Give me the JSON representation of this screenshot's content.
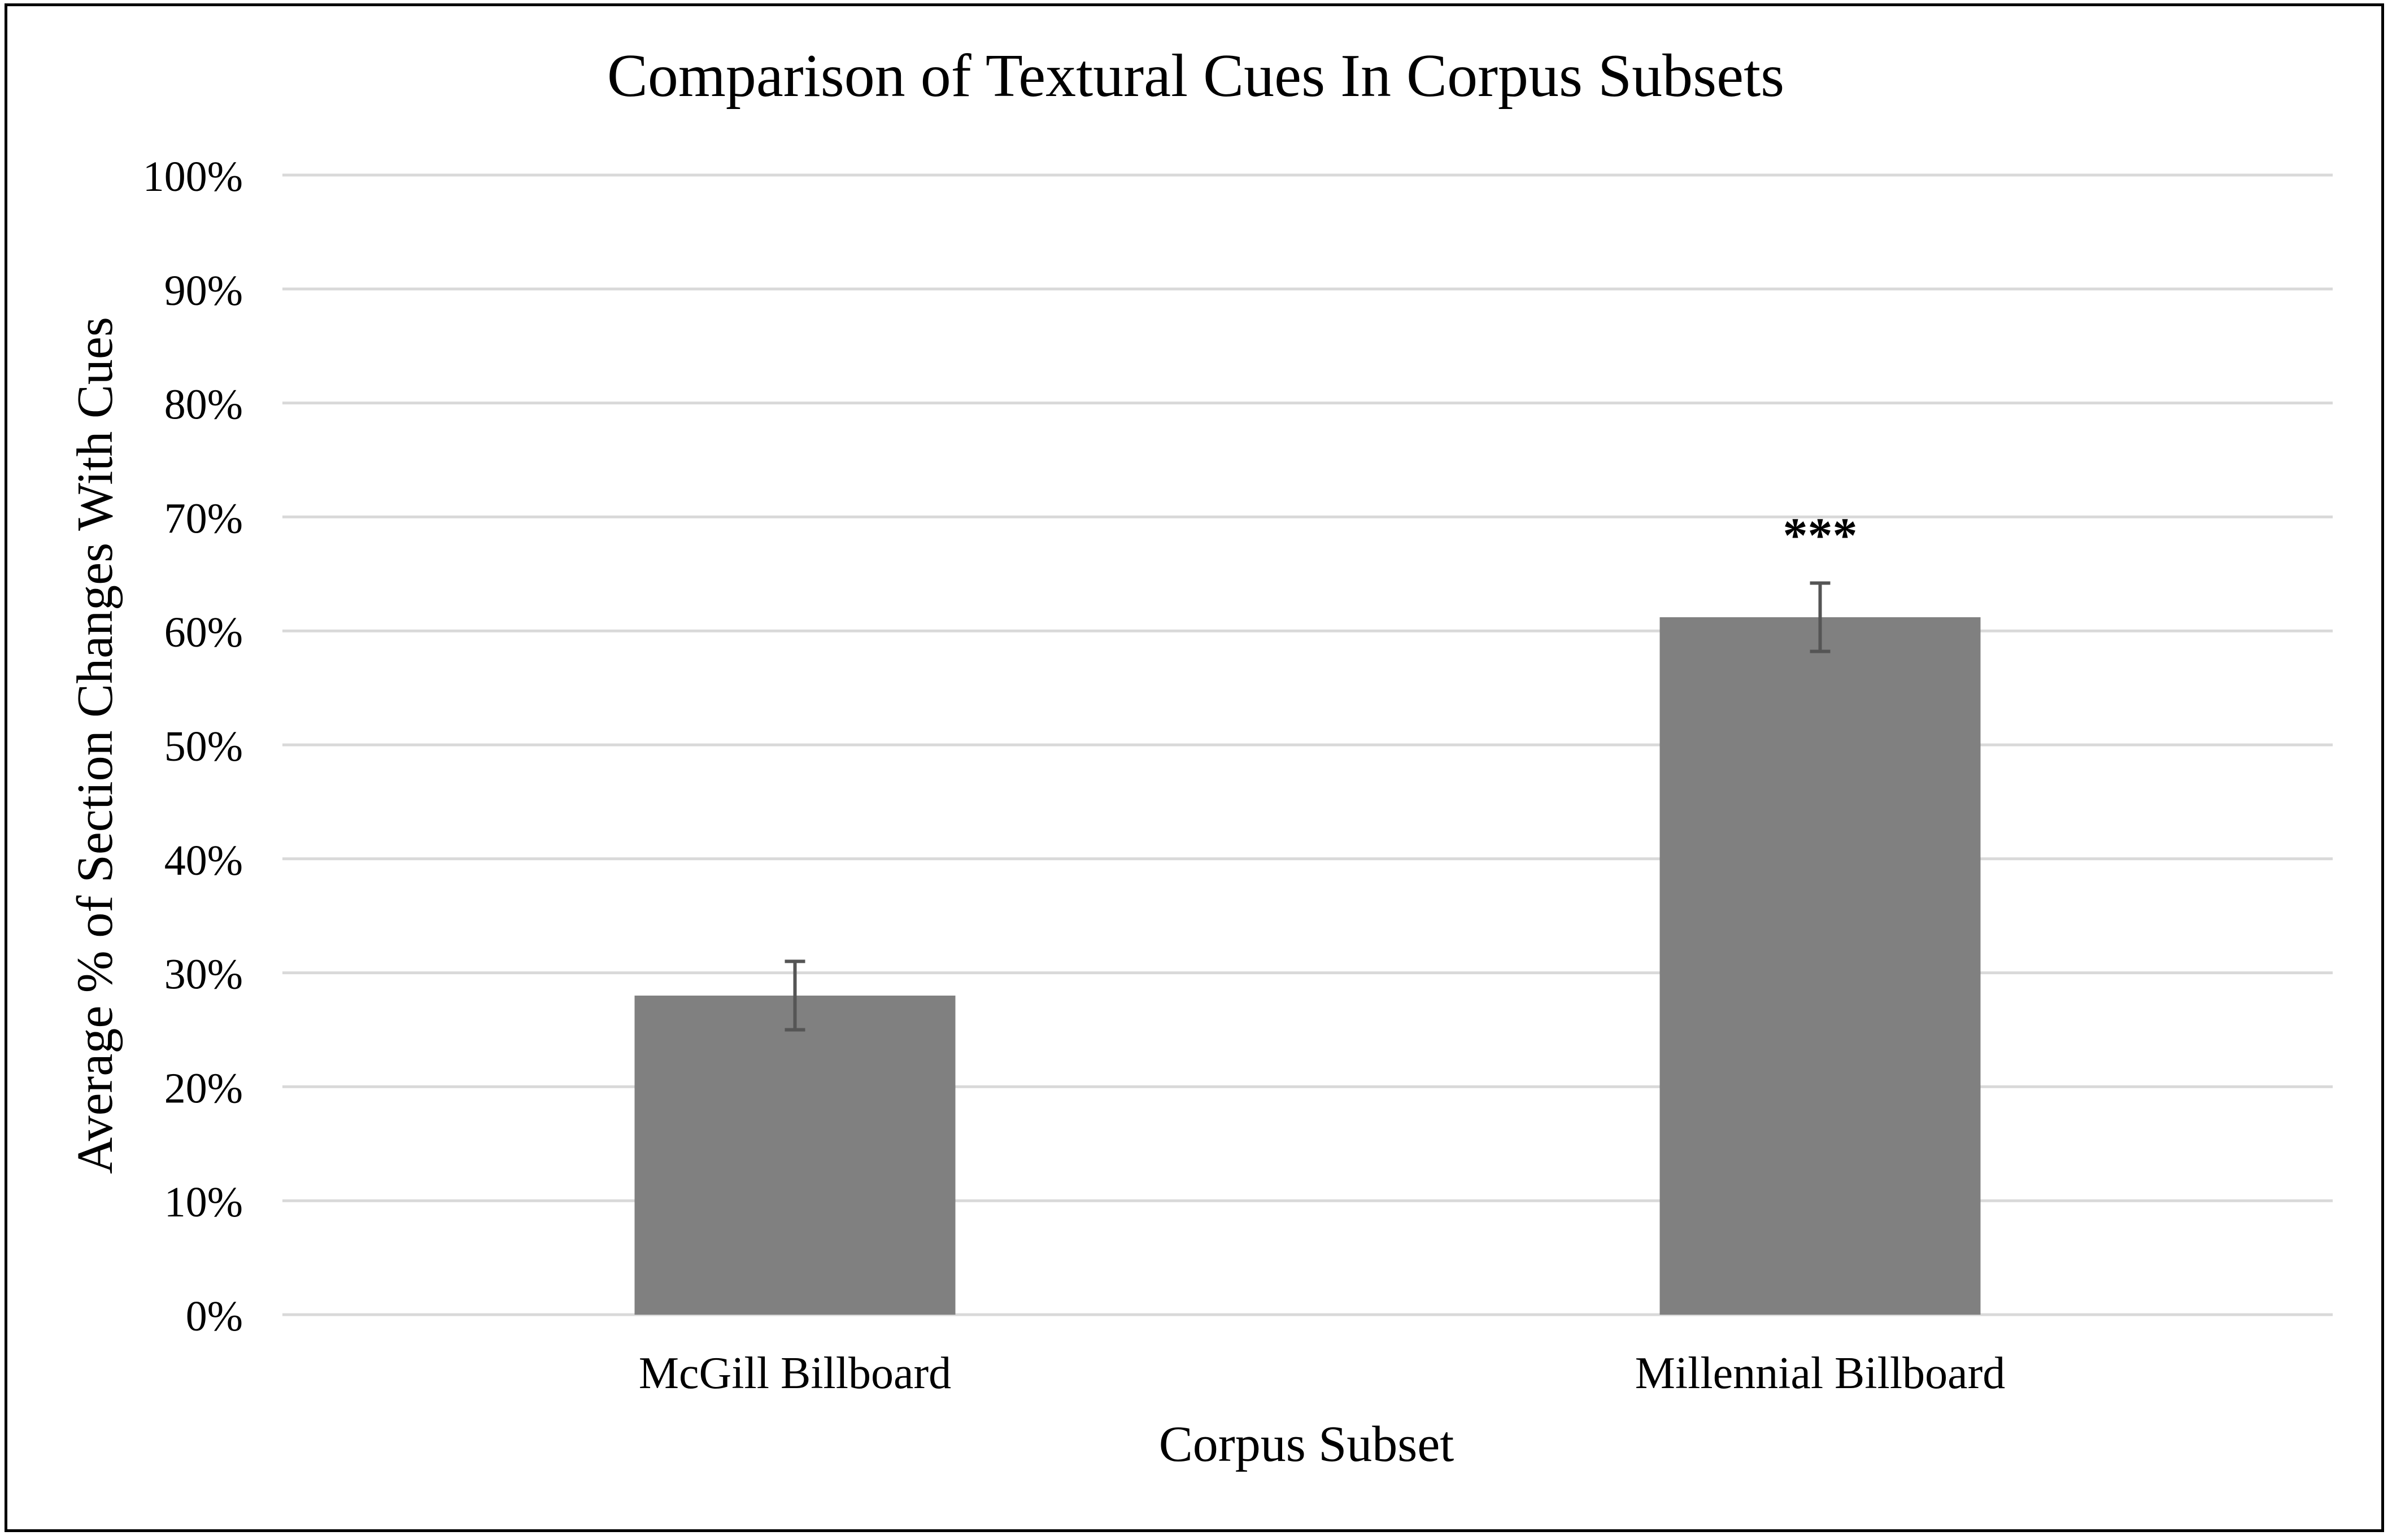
{
  "chart_data": {
    "type": "bar",
    "title": "Comparison of Textural Cues In Corpus Subsets",
    "xlabel": "Corpus Subset",
    "ylabel": "Average % of Section Changes With Cues",
    "categories": [
      "McGill Billboard",
      "Millennial Billboard"
    ],
    "values": [
      28,
      61.2
    ],
    "error_bars": [
      {
        "low": 25,
        "high": 31
      },
      {
        "low": 58.2,
        "high": 64.2
      }
    ],
    "annotations": [
      "",
      "***"
    ],
    "ylim": [
      0,
      100
    ],
    "yticks": [
      "0%",
      "10%",
      "20%",
      "30%",
      "40%",
      "50%",
      "60%",
      "70%",
      "80%",
      "90%",
      "100%"
    ],
    "grid": true,
    "legend": "none",
    "colors": {
      "bar": "#808080",
      "grid": "#d9d9d9",
      "error": "#555555"
    }
  }
}
